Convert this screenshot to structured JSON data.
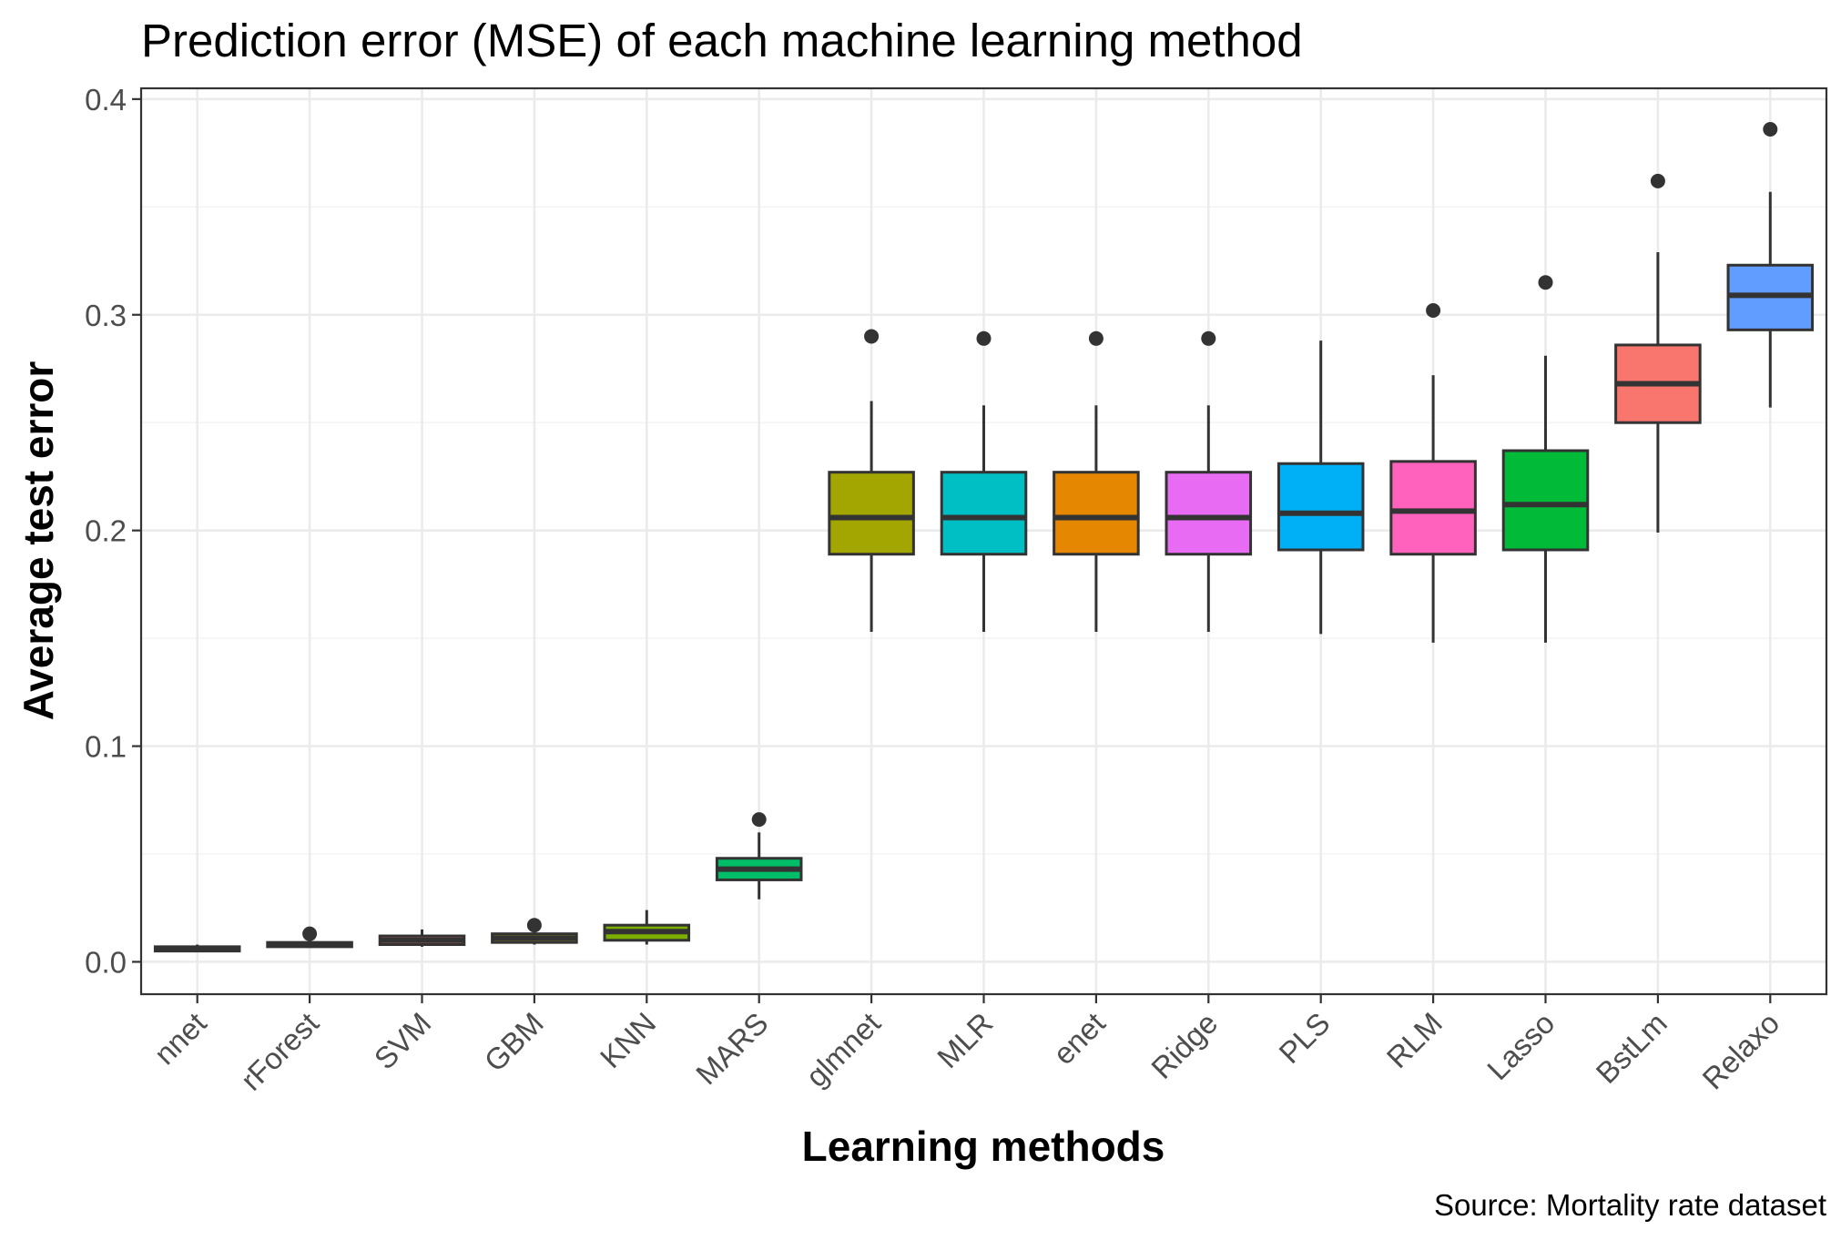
{
  "chart_data": {
    "type": "boxplot",
    "title": "Prediction error (MSE) of each machine learning method",
    "xlabel": "Learning methods",
    "ylabel": "Average test error",
    "caption": "Source: Mortality rate dataset",
    "ylim": [
      -0.015,
      0.405
    ],
    "yticks": [
      0.0,
      0.1,
      0.2,
      0.3,
      0.4
    ],
    "ytick_labels": [
      "0.0",
      "0.1",
      "0.2",
      "0.3",
      "0.4"
    ],
    "grid": true,
    "legend": "none",
    "categories": [
      "nnet",
      "rForest",
      "SVM",
      "GBM",
      "KNN",
      "MARS",
      "glmnet",
      "MLR",
      "enet",
      "Ridge",
      "PLS",
      "RLM",
      "Lasso",
      "BstLm",
      "Relaxo"
    ],
    "boxes": [
      {
        "name": "nnet",
        "color": "#E76BF3",
        "whisker_low": 0.005,
        "q1": 0.005,
        "median": 0.006,
        "q3": 0.007,
        "whisker_high": 0.008,
        "outliers": []
      },
      {
        "name": "rForest",
        "color": "#00A9FF",
        "whisker_low": 0.007,
        "q1": 0.007,
        "median": 0.008,
        "q3": 0.009,
        "whisker_high": 0.011,
        "outliers": [
          0.013
        ]
      },
      {
        "name": "SVM",
        "color": "#F8766D",
        "whisker_low": 0.007,
        "q1": 0.008,
        "median": 0.01,
        "q3": 0.012,
        "whisker_high": 0.015,
        "outliers": []
      },
      {
        "name": "GBM",
        "color": "#ABA300",
        "whisker_low": 0.008,
        "q1": 0.009,
        "median": 0.011,
        "q3": 0.013,
        "whisker_high": 0.015,
        "outliers": [
          0.017
        ]
      },
      {
        "name": "KNN",
        "color": "#7CAE00",
        "whisker_low": 0.008,
        "q1": 0.01,
        "median": 0.014,
        "q3": 0.017,
        "whisker_high": 0.024,
        "outliers": []
      },
      {
        "name": "MARS",
        "color": "#00BE67",
        "whisker_low": 0.029,
        "q1": 0.038,
        "median": 0.043,
        "q3": 0.048,
        "whisker_high": 0.06,
        "outliers": [
          0.066
        ]
      },
      {
        "name": "glmnet",
        "color": "#A3A500",
        "whisker_low": 0.153,
        "q1": 0.189,
        "median": 0.206,
        "q3": 0.227,
        "whisker_high": 0.26,
        "outliers": [
          0.29
        ]
      },
      {
        "name": "MLR",
        "color": "#00BFC4",
        "whisker_low": 0.153,
        "q1": 0.189,
        "median": 0.206,
        "q3": 0.227,
        "whisker_high": 0.258,
        "outliers": [
          0.289
        ]
      },
      {
        "name": "enet",
        "color": "#E58700",
        "whisker_low": 0.153,
        "q1": 0.189,
        "median": 0.206,
        "q3": 0.227,
        "whisker_high": 0.258,
        "outliers": [
          0.289
        ]
      },
      {
        "name": "Ridge",
        "color": "#E76BF3",
        "whisker_low": 0.153,
        "q1": 0.189,
        "median": 0.206,
        "q3": 0.227,
        "whisker_high": 0.258,
        "outliers": [
          0.289
        ]
      },
      {
        "name": "PLS",
        "color": "#00B0F6",
        "whisker_low": 0.152,
        "q1": 0.191,
        "median": 0.208,
        "q3": 0.231,
        "whisker_high": 0.288,
        "outliers": []
      },
      {
        "name": "RLM",
        "color": "#FF62BC",
        "whisker_low": 0.148,
        "q1": 0.189,
        "median": 0.209,
        "q3": 0.232,
        "whisker_high": 0.272,
        "outliers": [
          0.302
        ]
      },
      {
        "name": "Lasso",
        "color": "#00BA38",
        "whisker_low": 0.148,
        "q1": 0.191,
        "median": 0.212,
        "q3": 0.237,
        "whisker_high": 0.281,
        "outliers": [
          0.315
        ]
      },
      {
        "name": "BstLm",
        "color": "#F8766D",
        "whisker_low": 0.199,
        "q1": 0.25,
        "median": 0.268,
        "q3": 0.286,
        "whisker_high": 0.329,
        "outliers": [
          0.362
        ]
      },
      {
        "name": "Relaxo",
        "color": "#619CFF",
        "whisker_low": 0.257,
        "q1": 0.293,
        "median": 0.309,
        "q3": 0.323,
        "whisker_high": 0.357,
        "outliers": [
          0.386
        ]
      }
    ]
  }
}
